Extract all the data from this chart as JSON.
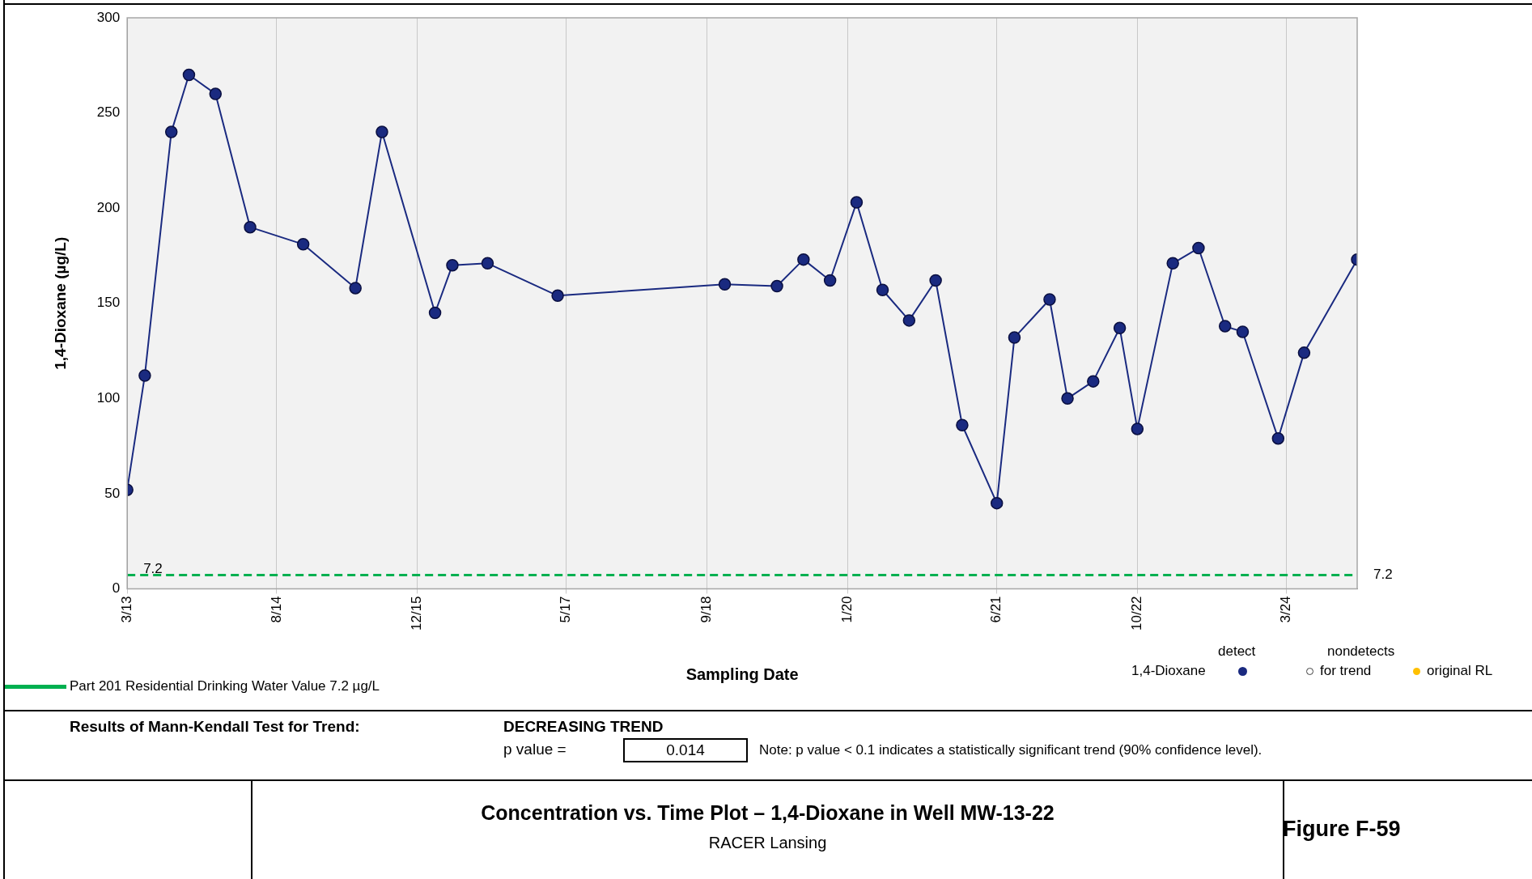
{
  "chart_data": {
    "type": "line",
    "title": "Concentration vs. Time Plot – 1,4-Dioxane in Well MW-13-22",
    "subtitle": "RACER Lansing",
    "xlabel": "Sampling Date",
    "ylabel": "1,4-Dioxane (µg/L)",
    "x": [
      "2013-03",
      "2013-05",
      "2013-08",
      "2013-10",
      "2014-01",
      "2014-05",
      "2014-11",
      "2015-05",
      "2015-08",
      "2016-02",
      "2016-04",
      "2016-08",
      "2017-04",
      "2018-11",
      "2019-05",
      "2019-08",
      "2019-11",
      "2020-02",
      "2020-05",
      "2020-08",
      "2020-11",
      "2021-02",
      "2021-06",
      "2021-08",
      "2021-12",
      "2022-02",
      "2022-05",
      "2022-08",
      "2022-10",
      "2023-02",
      "2023-05",
      "2023-08",
      "2023-10",
      "2024-02",
      "2024-05",
      "2024-11"
    ],
    "series": [
      {
        "name": "1,4-Dioxane",
        "color": "#1a2a80",
        "values": [
          52,
          112,
          240,
          270,
          260,
          190,
          181,
          158,
          240,
          145,
          170,
          171,
          154,
          160,
          159,
          173,
          162,
          203,
          157,
          141,
          162,
          86,
          45,
          132,
          152,
          100,
          109,
          137,
          84,
          171,
          179,
          138,
          135,
          79,
          124,
          173
        ]
      }
    ],
    "xlim": [
      "2013-03",
      "2024-11"
    ],
    "xticks": [
      {
        "value": "2013-03",
        "label": "3/13"
      },
      {
        "value": "2014-08",
        "label": "8/14"
      },
      {
        "value": "2015-12",
        "label": "12/15"
      },
      {
        "value": "2017-05",
        "label": "5/17"
      },
      {
        "value": "2018-09",
        "label": "9/18"
      },
      {
        "value": "2020-01",
        "label": "1/20"
      },
      {
        "value": "2021-06",
        "label": "6/21"
      },
      {
        "value": "2022-10",
        "label": "10/22"
      },
      {
        "value": "2024-03",
        "label": "3/24"
      }
    ],
    "ylim": [
      0,
      300
    ],
    "yticks": [
      0,
      50,
      100,
      150,
      200,
      250,
      300
    ],
    "grid": "x",
    "marker": "circle",
    "line_style": "solid",
    "legend": "bottom right",
    "ref_lines": [
      {
        "axis": "y",
        "value": 7.2,
        "label": "7.2",
        "color": "#00b050",
        "line_style": "dashed"
      }
    ],
    "annotations": [
      "Part 201 Residential Drinking Water Value 7.2 µg/L",
      "detect",
      "nondetects",
      "for trend",
      "original RL",
      "Results of Mann-Kendall Test for Trend:",
      "DECREASING TREND",
      "p value =",
      "0.014",
      "Note:  p value < 0.1 indicates a statistically significant trend (90% confidence level).",
      "Figure F-59"
    ]
  }
}
